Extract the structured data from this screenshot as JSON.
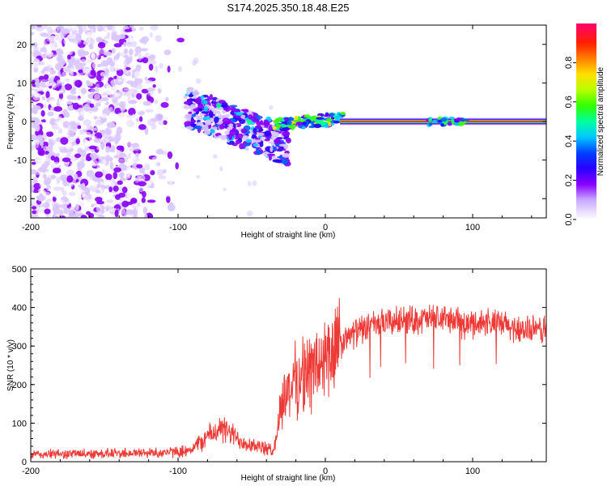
{
  "title": "S174.2025.350.18.48.E25",
  "colors": {
    "snr_line": "#ee3a36",
    "axis": "#000000",
    "background": "#ffffff",
    "low_amplitude": "#c7b3ff",
    "mid_amplitude": "#6a18ff"
  },
  "chart_data": [
    {
      "type": "heatmap",
      "name": "spectrogram",
      "xlabel": "Height of straight line (km)",
      "ylabel": "Frequency (Hz)",
      "xlim": [
        -200,
        150
      ],
      "ylim": [
        -25,
        25
      ],
      "xticks": [
        -200,
        -100,
        0,
        100
      ],
      "yticks": [
        -20,
        -10,
        0,
        10,
        20
      ],
      "colorbar": {
        "label": "Normalized spectral amplitude",
        "range": [
          0,
          1
        ],
        "ticks": [
          "0.0",
          "0.2",
          "0.4",
          "0.6",
          "0.8"
        ],
        "colormap": "rainbow (white-violet-blue-cyan-green-yellow-orange-red-magenta)"
      },
      "features": {
        "noise_cloud_x": [
          -200,
          -95
        ],
        "transition_x": [
          -95,
          -35
        ],
        "steady_carrier_from_x": 10,
        "carrier_frequency_hz": 0,
        "carrier_amplitude": 0.95
      }
    },
    {
      "type": "line",
      "name": "snr",
      "xlabel": "Height of straight line (km)",
      "ylabel": "SNR (10 * v/v)",
      "xlim": [
        -200,
        150
      ],
      "ylim": [
        0,
        500
      ],
      "xticks": [
        -200,
        -100,
        0,
        100
      ],
      "yticks": [
        0,
        100,
        200,
        300,
        400,
        500
      ],
      "series": [
        {
          "name": "SNR",
          "color": "#ee3a36",
          "x": [
            -200,
            -180,
            -160,
            -140,
            -120,
            -100,
            -90,
            -80,
            -72,
            -65,
            -58,
            -50,
            -42,
            -35,
            -30,
            -25,
            -20,
            -15,
            -10,
            -5,
            0,
            5,
            10,
            15,
            20,
            30,
            40,
            50,
            60,
            70,
            80,
            90,
            95,
            100,
            110,
            120,
            130,
            140,
            150
          ],
          "y": [
            18,
            20,
            21,
            22,
            23,
            25,
            35,
            65,
            85,
            75,
            55,
            45,
            35,
            28,
            150,
            190,
            210,
            225,
            235,
            250,
            265,
            280,
            300,
            320,
            335,
            350,
            360,
            365,
            368,
            370,
            372,
            365,
            350,
            360,
            362,
            355,
            345,
            340,
            345
          ]
        }
      ]
    }
  ]
}
